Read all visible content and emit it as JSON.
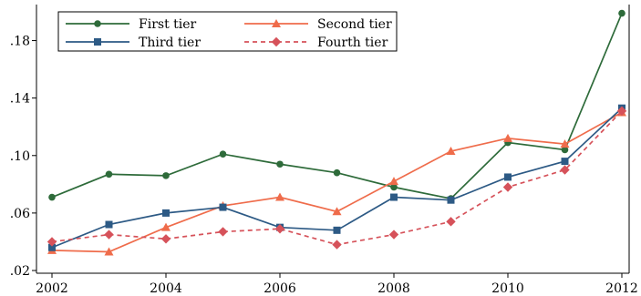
{
  "chart_data": {
    "type": "line",
    "title": "",
    "xlabel": "",
    "ylabel": "",
    "x": [
      2002,
      2003,
      2004,
      2005,
      2006,
      2007,
      2008,
      2009,
      2010,
      2011,
      2012
    ],
    "xlim": [
      2002,
      2012
    ],
    "ylim": [
      0.02,
      0.2
    ],
    "x_ticks": [
      2002,
      2004,
      2006,
      2008,
      2010,
      2012
    ],
    "x_tick_labels": [
      "2002",
      "2004",
      "2006",
      "2008",
      "2010",
      "2012"
    ],
    "y_ticks": [
      0.02,
      0.06,
      0.1,
      0.14,
      0.18
    ],
    "y_tick_labels": [
      ".02",
      ".06",
      ".10",
      ".14",
      ".18"
    ],
    "grid": false,
    "legend_position": "top-left",
    "series": [
      {
        "name": "First tier",
        "color": "#2e6b3a",
        "marker": "circle",
        "dashed": false,
        "values": [
          0.071,
          0.087,
          0.086,
          0.101,
          0.094,
          0.088,
          0.078,
          0.07,
          0.109,
          0.104,
          0.199
        ]
      },
      {
        "name": "Second tier",
        "color": "#ef6c4b",
        "marker": "triangle",
        "dashed": false,
        "values": [
          0.034,
          0.033,
          0.05,
          0.065,
          0.071,
          0.061,
          0.082,
          0.103,
          0.112,
          0.108,
          0.13
        ]
      },
      {
        "name": "Third tier",
        "color": "#2d5a85",
        "marker": "square",
        "dashed": false,
        "values": [
          0.036,
          0.052,
          0.06,
          0.064,
          0.05,
          0.048,
          0.071,
          0.069,
          0.085,
          0.096,
          0.133
        ]
      },
      {
        "name": "Fourth tier",
        "color": "#d6525a",
        "marker": "diamond",
        "dashed": true,
        "values": [
          0.04,
          0.045,
          0.042,
          0.047,
          0.049,
          0.038,
          0.045,
          0.054,
          0.078,
          0.09,
          0.131
        ]
      }
    ]
  }
}
